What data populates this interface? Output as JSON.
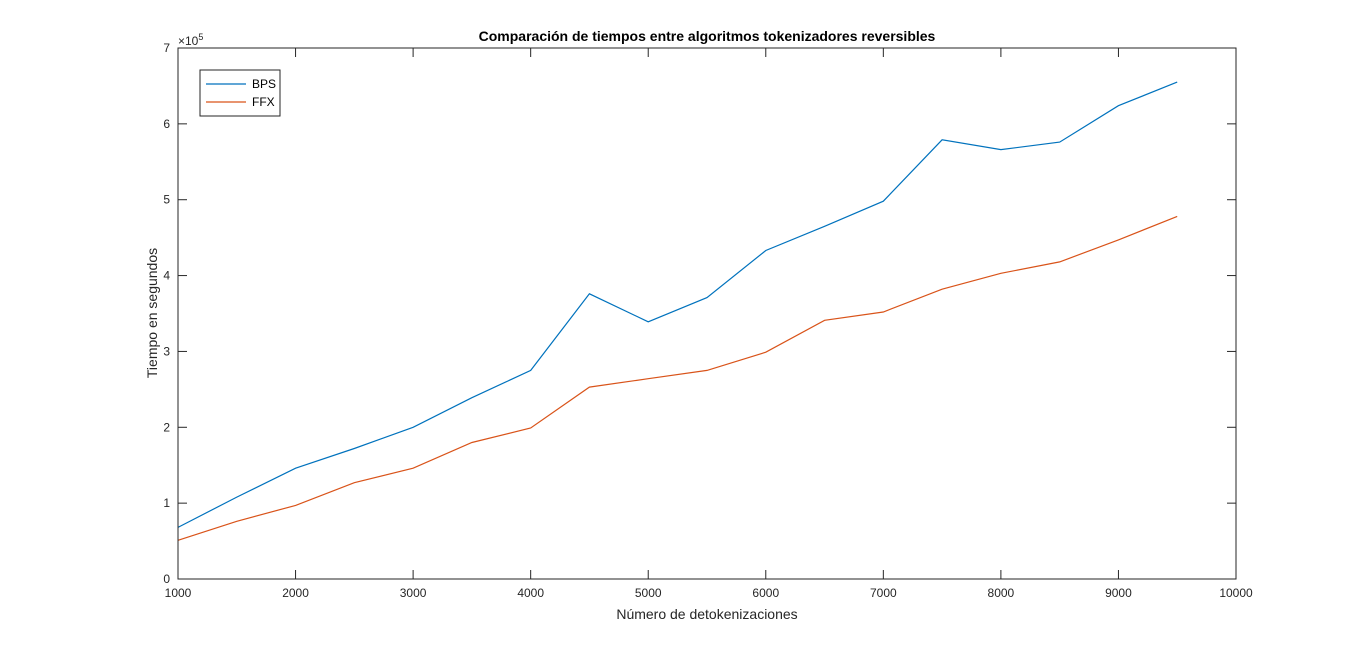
{
  "chart_data": {
    "type": "line",
    "title": "Comparación de tiempos entre algoritmos tokenizadores reversibles",
    "xlabel": "Número de detokenizaciones",
    "ylabel": "Tiempo en segundos",
    "xlim": [
      1000,
      10000
    ],
    "ylim": [
      0,
      700000
    ],
    "xticks": [
      1000,
      2000,
      3000,
      4000,
      5000,
      6000,
      7000,
      8000,
      9000,
      10000
    ],
    "yticks": [
      0,
      100000,
      200000,
      300000,
      400000,
      500000,
      600000,
      700000
    ],
    "ytick_labels": [
      "0",
      "1",
      "2",
      "3",
      "4",
      "5",
      "6",
      "7"
    ],
    "y_exponent_base": "×10",
    "y_exponent_power": "5",
    "grid": false,
    "legend": "top-left",
    "x": [
      1000,
      1500,
      2000,
      2500,
      3000,
      3500,
      4000,
      4500,
      5000,
      5500,
      6000,
      6500,
      7000,
      7500,
      8000,
      8500,
      9000,
      9500
    ],
    "series": [
      {
        "name": "BPS",
        "color": "#0072BD",
        "values": [
          68000,
          108000,
          146000,
          172000,
          200000,
          239000,
          275000,
          376000,
          339000,
          371000,
          433000,
          465000,
          498000,
          579000,
          566000,
          576000,
          624000,
          655000
        ]
      },
      {
        "name": "FFX",
        "color": "#D95319",
        "values": [
          51000,
          76000,
          97000,
          127000,
          146000,
          180000,
          199000,
          253000,
          264000,
          275000,
          299000,
          341000,
          352000,
          382000,
          403000,
          418000,
          447000,
          478000
        ]
      }
    ]
  }
}
